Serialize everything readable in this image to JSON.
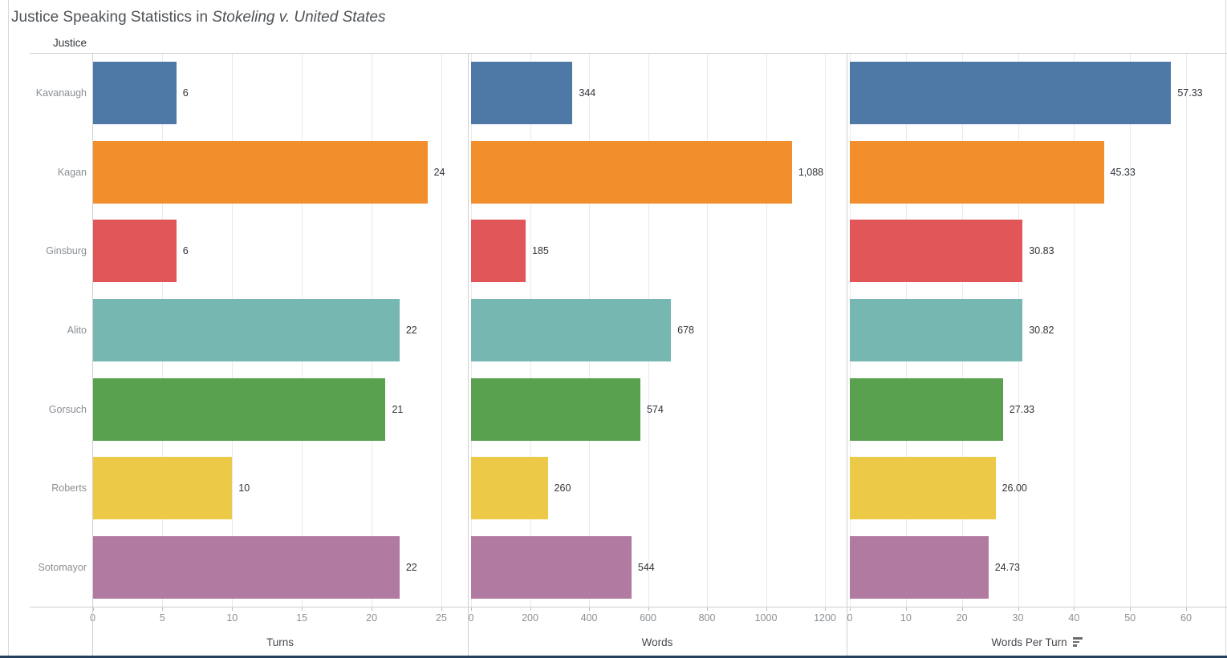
{
  "title": {
    "prefix": "Justice Speaking Statistics in ",
    "case_italic": "Stokeling v. United States"
  },
  "row_header": "Justice",
  "chart_data": {
    "type": "bar",
    "orientation": "horizontal",
    "title": "Justice Speaking Statistics in Stokeling v. United States",
    "categories": [
      "Kavanaugh",
      "Kagan",
      "Ginsburg",
      "Alito",
      "Gorsuch",
      "Roberts",
      "Sotomayor"
    ],
    "bar_colors": [
      "#4e79a7",
      "#f28e2b",
      "#e15759",
      "#76b7b2",
      "#59a14f",
      "#edc948",
      "#b07aa1"
    ],
    "grid": true,
    "legend_position": "none",
    "panels": [
      {
        "key": "turns",
        "xlabel": "Turns",
        "xlim": [
          0,
          25
        ],
        "sort_icon": false,
        "ticks": [
          0,
          5,
          10,
          15,
          20,
          25
        ],
        "tick_labels": [
          "0",
          "5",
          "10",
          "15",
          "20",
          "25"
        ],
        "values": [
          6,
          24,
          6,
          22,
          21,
          10,
          22
        ],
        "value_labels": [
          "6",
          "24",
          "6",
          "22",
          "21",
          "10",
          "22"
        ]
      },
      {
        "key": "words",
        "xlabel": "Words",
        "xlim": [
          0,
          1200
        ],
        "sort_icon": false,
        "ticks": [
          0,
          200,
          400,
          600,
          800,
          1000,
          1200
        ],
        "tick_labels": [
          "0",
          "200",
          "400",
          "600",
          "800",
          "1000",
          "1200"
        ],
        "values": [
          344,
          1088,
          185,
          678,
          574,
          260,
          544
        ],
        "value_labels": [
          "344",
          "1,088",
          "185",
          "678",
          "574",
          "260",
          "544"
        ]
      },
      {
        "key": "words_per_turn",
        "xlabel": "Words Per Turn",
        "xlim": [
          0,
          60
        ],
        "sort_icon": true,
        "ticks": [
          0,
          10,
          20,
          30,
          40,
          50,
          60
        ],
        "tick_labels": [
          "0",
          "10",
          "20",
          "30",
          "40",
          "50",
          "60"
        ],
        "values": [
          57.33,
          45.33,
          30.83,
          30.82,
          27.33,
          26.0,
          24.73
        ],
        "value_labels": [
          "57.33",
          "45.33",
          "30.83",
          "30.82",
          "27.33",
          "26.00",
          "24.73"
        ]
      }
    ]
  }
}
